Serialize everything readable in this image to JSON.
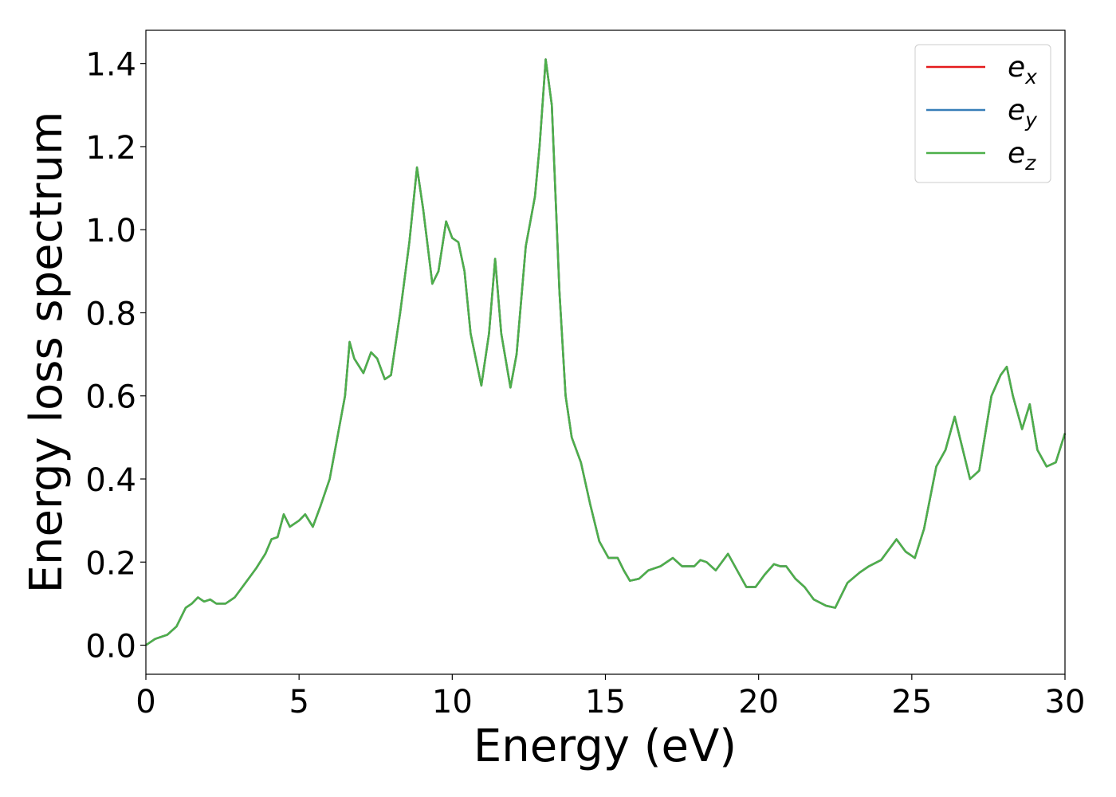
{
  "chart_data": {
    "type": "line",
    "xlabel": "Energy (eV)",
    "ylabel": "Energy loss spectrum",
    "x": [
      0,
      0.3,
      0.7,
      1.0,
      1.3,
      1.5,
      1.7,
      1.9,
      2.1,
      2.3,
      2.6,
      2.9,
      3.3,
      3.6,
      3.9,
      4.1,
      4.3,
      4.5,
      4.7,
      5.0,
      5.2,
      5.45,
      5.7,
      6.0,
      6.3,
      6.5,
      6.65,
      6.8,
      7.1,
      7.35,
      7.55,
      7.8,
      8.0,
      8.3,
      8.6,
      8.85,
      9.05,
      9.35,
      9.55,
      9.8,
      10.0,
      10.2,
      10.4,
      10.6,
      10.95,
      11.2,
      11.4,
      11.6,
      11.9,
      12.1,
      12.4,
      12.7,
      12.85,
      13.05,
      13.25,
      13.5,
      13.7,
      13.9,
      14.2,
      14.5,
      14.8,
      15.1,
      15.4,
      15.6,
      15.8,
      16.1,
      16.4,
      16.8,
      17.2,
      17.5,
      17.9,
      18.1,
      18.3,
      18.6,
      19.0,
      19.3,
      19.6,
      19.9,
      20.2,
      20.5,
      20.7,
      20.9,
      21.2,
      21.5,
      21.8,
      22.2,
      22.5,
      22.9,
      23.3,
      23.6,
      24.0,
      24.2,
      24.5,
      24.8,
      25.1,
      25.4,
      25.8,
      26.1,
      26.4,
      26.6,
      26.9,
      27.2,
      27.6,
      27.9,
      28.1,
      28.3,
      28.6,
      28.85,
      29.1,
      29.4,
      29.7,
      30
    ],
    "series": [
      {
        "name": "ex",
        "color": "#e41a1c",
        "values": [
          0,
          0.015,
          0.025,
          0.045,
          0.09,
          0.1,
          0.115,
          0.105,
          0.11,
          0.1,
          0.1,
          0.115,
          0.155,
          0.185,
          0.22,
          0.255,
          0.26,
          0.315,
          0.285,
          0.3,
          0.315,
          0.285,
          0.335,
          0.4,
          0.52,
          0.6,
          0.73,
          0.69,
          0.655,
          0.705,
          0.69,
          0.64,
          0.65,
          0.8,
          0.97,
          1.15,
          1.05,
          0.87,
          0.9,
          1.02,
          0.98,
          0.97,
          0.9,
          0.75,
          0.625,
          0.75,
          0.93,
          0.75,
          0.62,
          0.7,
          0.96,
          1.08,
          1.2,
          1.41,
          1.3,
          0.85,
          0.6,
          0.5,
          0.44,
          0.34,
          0.25,
          0.21,
          0.21,
          0.18,
          0.155,
          0.16,
          0.18,
          0.19,
          0.21,
          0.19,
          0.19,
          0.205,
          0.2,
          0.18,
          0.22,
          0.18,
          0.14,
          0.14,
          0.17,
          0.195,
          0.19,
          0.19,
          0.16,
          0.14,
          0.11,
          0.095,
          0.09,
          0.15,
          0.175,
          0.19,
          0.205,
          0.225,
          0.255,
          0.225,
          0.21,
          0.28,
          0.43,
          0.47,
          0.55,
          0.49,
          0.4,
          0.42,
          0.6,
          0.65,
          0.67,
          0.6,
          0.52,
          0.58,
          0.47,
          0.43,
          0.44,
          0.51
        ]
      },
      {
        "name": "ey",
        "color": "#377eb8",
        "values": [
          0,
          0.015,
          0.025,
          0.045,
          0.09,
          0.1,
          0.115,
          0.105,
          0.11,
          0.1,
          0.1,
          0.115,
          0.155,
          0.185,
          0.22,
          0.255,
          0.26,
          0.315,
          0.285,
          0.3,
          0.315,
          0.285,
          0.335,
          0.4,
          0.52,
          0.6,
          0.73,
          0.69,
          0.655,
          0.705,
          0.69,
          0.64,
          0.65,
          0.8,
          0.97,
          1.15,
          1.05,
          0.87,
          0.9,
          1.02,
          0.98,
          0.97,
          0.9,
          0.75,
          0.625,
          0.75,
          0.93,
          0.75,
          0.62,
          0.7,
          0.96,
          1.08,
          1.2,
          1.41,
          1.3,
          0.85,
          0.6,
          0.5,
          0.44,
          0.34,
          0.25,
          0.21,
          0.21,
          0.18,
          0.155,
          0.16,
          0.18,
          0.19,
          0.21,
          0.19,
          0.19,
          0.205,
          0.2,
          0.18,
          0.22,
          0.18,
          0.14,
          0.14,
          0.17,
          0.195,
          0.19,
          0.19,
          0.16,
          0.14,
          0.11,
          0.095,
          0.09,
          0.15,
          0.175,
          0.19,
          0.205,
          0.225,
          0.255,
          0.225,
          0.21,
          0.28,
          0.43,
          0.47,
          0.55,
          0.49,
          0.4,
          0.42,
          0.6,
          0.65,
          0.67,
          0.6,
          0.52,
          0.58,
          0.47,
          0.43,
          0.44,
          0.51
        ]
      },
      {
        "name": "ez",
        "color": "#4daf4a",
        "values": [
          0,
          0.015,
          0.025,
          0.045,
          0.09,
          0.1,
          0.115,
          0.105,
          0.11,
          0.1,
          0.1,
          0.115,
          0.155,
          0.185,
          0.22,
          0.255,
          0.26,
          0.315,
          0.285,
          0.3,
          0.315,
          0.285,
          0.335,
          0.4,
          0.52,
          0.6,
          0.73,
          0.69,
          0.655,
          0.705,
          0.69,
          0.64,
          0.65,
          0.8,
          0.97,
          1.15,
          1.05,
          0.87,
          0.9,
          1.02,
          0.98,
          0.97,
          0.9,
          0.75,
          0.625,
          0.75,
          0.93,
          0.75,
          0.62,
          0.7,
          0.96,
          1.08,
          1.2,
          1.41,
          1.3,
          0.85,
          0.6,
          0.5,
          0.44,
          0.34,
          0.25,
          0.21,
          0.21,
          0.18,
          0.155,
          0.16,
          0.18,
          0.19,
          0.21,
          0.19,
          0.19,
          0.205,
          0.2,
          0.18,
          0.22,
          0.18,
          0.14,
          0.14,
          0.17,
          0.195,
          0.19,
          0.19,
          0.16,
          0.14,
          0.11,
          0.095,
          0.09,
          0.15,
          0.175,
          0.19,
          0.205,
          0.225,
          0.255,
          0.225,
          0.21,
          0.28,
          0.43,
          0.47,
          0.55,
          0.49,
          0.4,
          0.42,
          0.6,
          0.65,
          0.67,
          0.6,
          0.52,
          0.58,
          0.47,
          0.43,
          0.44,
          0.51
        ]
      }
    ],
    "xlim": [
      0,
      30
    ],
    "xticks": [
      0,
      5,
      10,
      15,
      20,
      25,
      30
    ],
    "ylim": [
      -0.07,
      1.48
    ],
    "yticks": [
      {
        "value": 0,
        "label": "0.0"
      },
      {
        "value": 0.2,
        "label": "0.2"
      },
      {
        "value": 0.4,
        "label": "0.4"
      },
      {
        "value": 0.6,
        "label": "0.6"
      },
      {
        "value": 0.8,
        "label": "0.8"
      },
      {
        "value": 1.0,
        "label": "1.0"
      },
      {
        "value": 1.2,
        "label": "1.2"
      },
      {
        "value": 1.4,
        "label": "1.4"
      }
    ],
    "grid": false,
    "legend": "upper right"
  }
}
